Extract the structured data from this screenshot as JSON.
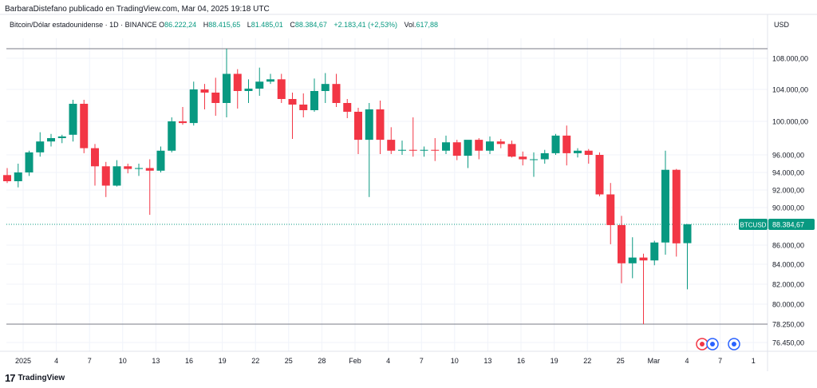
{
  "header": {
    "publisher": "BarbaraDistefano publicado en TradingView.com, Mar 04, 2025 19:18 UTC"
  },
  "legend": {
    "symbol": "Bitcoin/Dólar estadounidense · 1D · BINANCE",
    "o_label": "O",
    "o_value": "86.222,24",
    "h_label": "H",
    "h_value": "88.415,65",
    "l_label": "L",
    "l_value": "81.485,01",
    "c_label": "C",
    "c_value": "88.384,67",
    "change": "+2.183,41 (+2,53%)",
    "vol_label": "Vol.",
    "vol_value": "617,88"
  },
  "currency": "USD",
  "footer": {
    "brand": "TradingView",
    "logo_glyph": "17"
  },
  "colors": {
    "up": "#089981",
    "down": "#f23645",
    "grid": "#f0f3fa",
    "axis_text": "#131722",
    "tag_bg": "#089981"
  },
  "chart_data": {
    "type": "candlestick",
    "x_tick_labels": [
      "2025",
      "4",
      "7",
      "10",
      "13",
      "16",
      "19",
      "22",
      "25",
      "28",
      "Feb",
      "4",
      "7",
      "10",
      "13",
      "16",
      "19",
      "22",
      "25",
      "Mar",
      "4",
      "7",
      "1"
    ],
    "y_tick_labels": [
      {
        "label": "108.000,00",
        "value": 108000
      },
      {
        "label": "104.000,00",
        "value": 104000
      },
      {
        "label": "100.000,00",
        "value": 100000
      },
      {
        "label": "96.000,00",
        "value": 96000
      },
      {
        "label": "94.000,00",
        "value": 94000
      },
      {
        "label": "92.000,00",
        "value": 92000
      },
      {
        "label": "90.000,00",
        "value": 90000
      },
      {
        "label": "86.000,00",
        "value": 86000
      },
      {
        "label": "84.000,00",
        "value": 84000
      },
      {
        "label": "82.000,00",
        "value": 82000
      },
      {
        "label": "80.000,00",
        "value": 80000
      },
      {
        "label": "78.250,00",
        "value": 78250
      },
      {
        "label": "76.450,00",
        "value": 76450
      }
    ],
    "price_tag": {
      "name": "BTCUSD",
      "value_label": "88.384,67",
      "value": 88384.67
    },
    "hlines": [
      109000,
      88384.67,
      78250
    ],
    "candles": [
      {
        "o": 93700,
        "h": 94500,
        "l": 92800,
        "c": 93000
      },
      {
        "o": 93000,
        "h": 95000,
        "l": 92300,
        "c": 94000
      },
      {
        "o": 94000,
        "h": 96500,
        "l": 93600,
        "c": 96300
      },
      {
        "o": 96300,
        "h": 98700,
        "l": 95800,
        "c": 97600
      },
      {
        "o": 97600,
        "h": 98500,
        "l": 97000,
        "c": 98000
      },
      {
        "o": 98000,
        "h": 98400,
        "l": 97400,
        "c": 98200
      },
      {
        "o": 98400,
        "h": 102700,
        "l": 97600,
        "c": 102200
      },
      {
        "o": 102200,
        "h": 102700,
        "l": 96200,
        "c": 96800
      },
      {
        "o": 96800,
        "h": 97300,
        "l": 92500,
        "c": 94700
      },
      {
        "o": 94700,
        "h": 95200,
        "l": 91200,
        "c": 92500
      },
      {
        "o": 92500,
        "h": 95400,
        "l": 92400,
        "c": 94700
      },
      {
        "o": 94700,
        "h": 95000,
        "l": 93900,
        "c": 94400
      },
      {
        "o": 94400,
        "h": 95000,
        "l": 93600,
        "c": 94500
      },
      {
        "o": 94500,
        "h": 95500,
        "l": 89300,
        "c": 94200
      },
      {
        "o": 94200,
        "h": 97000,
        "l": 94000,
        "c": 96500
      },
      {
        "o": 96500,
        "h": 100500,
        "l": 96300,
        "c": 100000
      },
      {
        "o": 100000,
        "h": 101800,
        "l": 99600,
        "c": 99800
      },
      {
        "o": 99800,
        "h": 105000,
        "l": 99500,
        "c": 104000
      },
      {
        "o": 104000,
        "h": 104700,
        "l": 101500,
        "c": 103600
      },
      {
        "o": 103600,
        "h": 105500,
        "l": 100700,
        "c": 102300
      },
      {
        "o": 102300,
        "h": 109000,
        "l": 100500,
        "c": 106000
      },
      {
        "o": 106000,
        "h": 106600,
        "l": 101600,
        "c": 103800
      },
      {
        "o": 103800,
        "h": 105300,
        "l": 102300,
        "c": 104100
      },
      {
        "o": 104100,
        "h": 106800,
        "l": 103200,
        "c": 105000
      },
      {
        "o": 105000,
        "h": 106000,
        "l": 104700,
        "c": 105300
      },
      {
        "o": 105300,
        "h": 106000,
        "l": 102300,
        "c": 102800
      },
      {
        "o": 102800,
        "h": 103600,
        "l": 97900,
        "c": 102100
      },
      {
        "o": 102100,
        "h": 103500,
        "l": 100500,
        "c": 101400
      },
      {
        "o": 101400,
        "h": 105400,
        "l": 101200,
        "c": 103800
      },
      {
        "o": 103800,
        "h": 106100,
        "l": 102300,
        "c": 104700
      },
      {
        "o": 104700,
        "h": 106000,
        "l": 101800,
        "c": 102300
      },
      {
        "o": 102300,
        "h": 102800,
        "l": 100400,
        "c": 101200
      },
      {
        "o": 101200,
        "h": 101700,
        "l": 96100,
        "c": 97800
      },
      {
        "o": 97800,
        "h": 102300,
        "l": 91200,
        "c": 101500
      },
      {
        "o": 101500,
        "h": 102600,
        "l": 96100,
        "c": 97800
      },
      {
        "o": 97800,
        "h": 99300,
        "l": 96100,
        "c": 96500
      },
      {
        "o": 96500,
        "h": 97700,
        "l": 96000,
        "c": 96600
      },
      {
        "o": 96600,
        "h": 100500,
        "l": 95800,
        "c": 96500
      },
      {
        "o": 96500,
        "h": 97000,
        "l": 95800,
        "c": 96600
      },
      {
        "o": 96600,
        "h": 98000,
        "l": 95300,
        "c": 96500
      },
      {
        "o": 96500,
        "h": 98300,
        "l": 96100,
        "c": 97500
      },
      {
        "o": 97500,
        "h": 97800,
        "l": 95400,
        "c": 95900
      },
      {
        "o": 95900,
        "h": 97600,
        "l": 94500,
        "c": 97800
      },
      {
        "o": 97800,
        "h": 98000,
        "l": 95500,
        "c": 96500
      },
      {
        "o": 96500,
        "h": 98200,
        "l": 96100,
        "c": 97600
      },
      {
        "o": 97600,
        "h": 97900,
        "l": 96800,
        "c": 97300
      },
      {
        "o": 97300,
        "h": 97700,
        "l": 95700,
        "c": 95800
      },
      {
        "o": 95800,
        "h": 96400,
        "l": 94800,
        "c": 95500
      },
      {
        "o": 95500,
        "h": 96300,
        "l": 93500,
        "c": 95500
      },
      {
        "o": 95500,
        "h": 96600,
        "l": 95000,
        "c": 96200
      },
      {
        "o": 96200,
        "h": 98500,
        "l": 96000,
        "c": 98300
      },
      {
        "o": 98300,
        "h": 99500,
        "l": 94800,
        "c": 96200
      },
      {
        "o": 96200,
        "h": 96800,
        "l": 95700,
        "c": 96500
      },
      {
        "o": 96500,
        "h": 96700,
        "l": 95000,
        "c": 96000
      },
      {
        "o": 96000,
        "h": 96300,
        "l": 91300,
        "c": 91500
      },
      {
        "o": 91500,
        "h": 92800,
        "l": 86100,
        "c": 88300
      },
      {
        "o": 88300,
        "h": 89200,
        "l": 82100,
        "c": 84100
      },
      {
        "o": 84100,
        "h": 86900,
        "l": 82600,
        "c": 84700
      },
      {
        "o": 84700,
        "h": 85100,
        "l": 78250,
        "c": 84400
      },
      {
        "o": 84400,
        "h": 86500,
        "l": 83900,
        "c": 86300
      },
      {
        "o": 86300,
        "h": 96500,
        "l": 85000,
        "c": 94300
      },
      {
        "o": 94300,
        "h": 94400,
        "l": 84800,
        "c": 86200
      },
      {
        "o": 86222.24,
        "h": 88415.65,
        "l": 81485.01,
        "c": 88384.67
      }
    ]
  }
}
